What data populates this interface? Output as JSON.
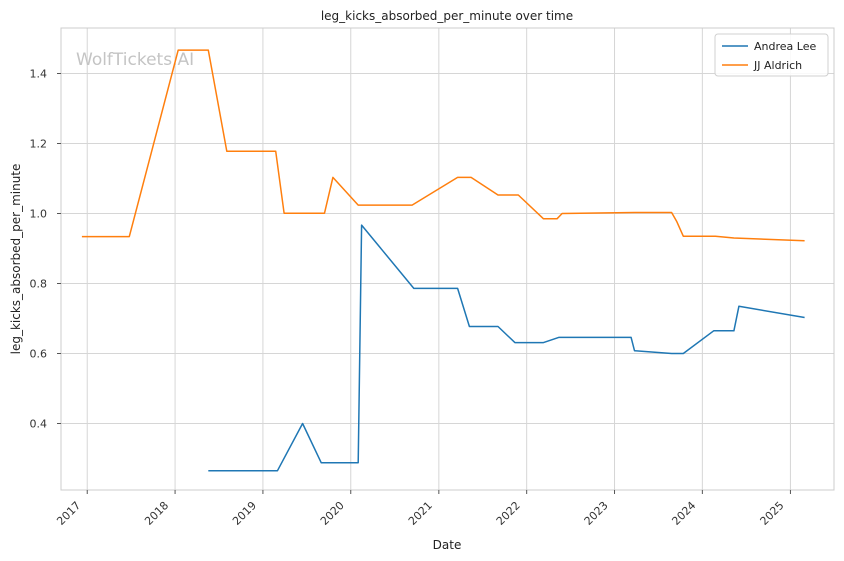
{
  "chart_data": {
    "type": "line",
    "title": "leg_kicks_absorbed_per_minute over time",
    "xlabel": "Date",
    "ylabel": "leg_kicks_absorbed_per_minute",
    "watermark": "WolfTickets.AI",
    "x_ticks": [
      "2017",
      "2018",
      "2019",
      "2020",
      "2021",
      "2022",
      "2023",
      "2024",
      "2025"
    ],
    "y_ticks": [
      "0.4",
      "0.6",
      "0.8",
      "1.0",
      "1.2",
      "1.4"
    ],
    "xlim": [
      "2016-09-14",
      "2025-07-01"
    ],
    "ylim": [
      0.21,
      1.53
    ],
    "grid": true,
    "legend_position": "top-right",
    "series": [
      {
        "name": "Andrea Lee",
        "color": "#1f77b4",
        "points": [
          [
            "2018-05-19",
            0.265
          ],
          [
            "2019-03-02",
            0.265
          ],
          [
            "2019-06-15",
            0.4
          ],
          [
            "2019-08-31",
            0.288
          ],
          [
            "2020-02-01",
            0.288
          ],
          [
            "2020-02-15",
            0.967
          ],
          [
            "2020-09-19",
            0.786
          ],
          [
            "2021-03-20",
            0.786
          ],
          [
            "2021-05-08",
            0.677
          ],
          [
            "2021-09-04",
            0.677
          ],
          [
            "2021-11-13",
            0.631
          ],
          [
            "2022-03-12",
            0.631
          ],
          [
            "2022-05-14",
            0.646
          ],
          [
            "2023-03-11",
            0.646
          ],
          [
            "2023-03-25",
            0.608
          ],
          [
            "2023-08-26",
            0.6
          ],
          [
            "2023-10-14",
            0.6
          ],
          [
            "2024-02-17",
            0.665
          ],
          [
            "2024-05-11",
            0.665
          ],
          [
            "2024-06-01",
            0.735
          ],
          [
            "2025-03-01",
            0.703
          ]
        ]
      },
      {
        "name": "JJ Aldrich",
        "color": "#ff7f0e",
        "points": [
          [
            "2016-12-10",
            0.934
          ],
          [
            "2017-06-25",
            0.934
          ],
          [
            "2018-01-14",
            1.467
          ],
          [
            "2018-05-19",
            1.467
          ],
          [
            "2018-08-04",
            1.178
          ],
          [
            "2019-02-23",
            1.178
          ],
          [
            "2019-03-30",
            1.001
          ],
          [
            "2019-09-14",
            1.001
          ],
          [
            "2019-10-19",
            1.103
          ],
          [
            "2020-02-01",
            1.024
          ],
          [
            "2020-09-12",
            1.024
          ],
          [
            "2021-03-20",
            1.103
          ],
          [
            "2021-05-15",
            1.103
          ],
          [
            "2021-09-04",
            1.053
          ],
          [
            "2021-11-27",
            1.053
          ],
          [
            "2022-03-12",
            0.985
          ],
          [
            "2022-05-07",
            0.985
          ],
          [
            "2022-05-28",
            1.0
          ],
          [
            "2023-03-25",
            1.003
          ],
          [
            "2023-08-26",
            1.003
          ],
          [
            "2023-09-16",
            0.978
          ],
          [
            "2023-10-14",
            0.935
          ],
          [
            "2024-02-24",
            0.935
          ],
          [
            "2024-05-11",
            0.93
          ],
          [
            "2025-03-01",
            0.922
          ]
        ]
      }
    ]
  }
}
